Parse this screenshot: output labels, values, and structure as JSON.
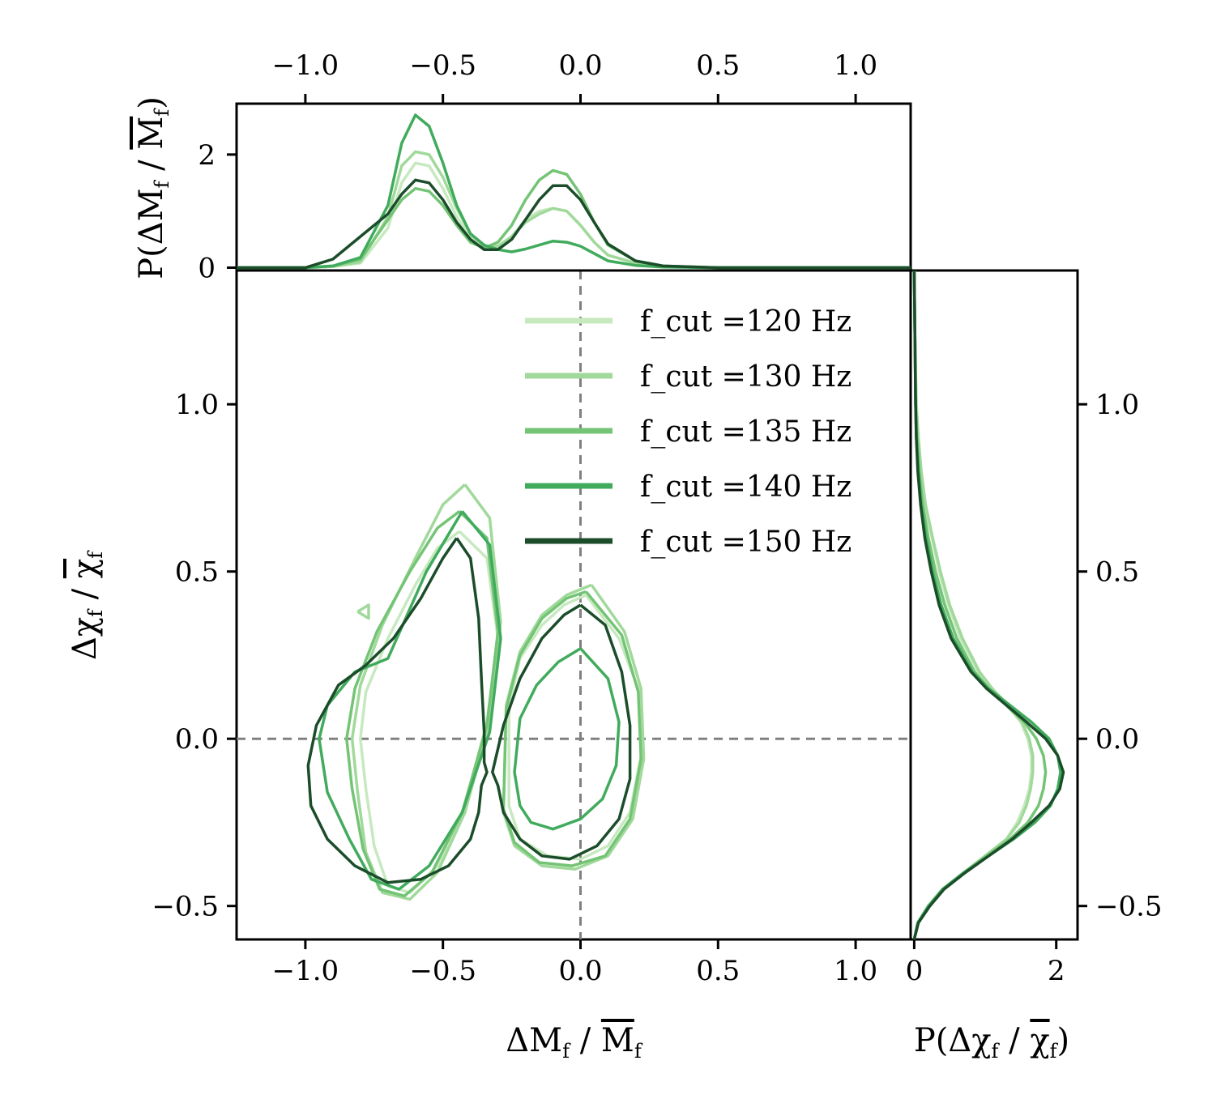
{
  "figure": {
    "x_label": "ΔM_f / M̄_f",
    "y_label": "Δχ_f / χ̄_f",
    "top_marginal_label": "P(ΔM_f / M̄_f)",
    "right_marginal_label": "P(Δχ_f / χ̄_f)"
  },
  "legend": {
    "placement": "upper center",
    "entries": [
      {
        "label": "f_cut =120 Hz",
        "color": "#c7e9c0"
      },
      {
        "label": "f_cut =130 Hz",
        "color": "#a1d99b"
      },
      {
        "label": "f_cut =135 Hz",
        "color": "#74c476"
      },
      {
        "label": "f_cut =140 Hz",
        "color": "#41ab5d"
      },
      {
        "label": "f_cut =150 Hz",
        "color": "#1b4d2a"
      }
    ]
  },
  "chart_data": [
    {
      "type": "line",
      "panel": "main-contours",
      "xlim": [
        -1.25,
        1.2
      ],
      "ylim": [
        -0.6,
        1.4
      ],
      "x_ticks": [
        "−1.0",
        "−0.5",
        "0.0",
        "0.5",
        "1.0"
      ],
      "y_ticks": [
        "−0.5",
        "0.0",
        "0.5",
        "1.0"
      ],
      "reference_lines": {
        "x": 0.0,
        "y": 0.0,
        "style": "dashed",
        "color": "#808080"
      },
      "series": [
        {
          "name": "f_cut =120 Hz",
          "color": "#c7e9c0",
          "contours": [
            {
              "x": [
                -0.44,
                -0.34,
                -0.3,
                -0.34,
                -0.42,
                -0.52,
                -0.62,
                -0.7,
                -0.75,
                -0.78,
                -0.8,
                -0.78,
                -0.7,
                -0.6,
                -0.52,
                -0.44
              ],
              "y": [
                0.62,
                0.54,
                0.3,
                0.05,
                -0.2,
                -0.38,
                -0.46,
                -0.44,
                -0.32,
                -0.15,
                0.0,
                0.14,
                0.3,
                0.46,
                0.57,
                0.62
              ]
            },
            {
              "x": [
                0.02,
                0.14,
                0.21,
                0.22,
                0.18,
                0.1,
                0.0,
                -0.12,
                -0.22,
                -0.26,
                -0.26,
                -0.22,
                -0.14,
                -0.06,
                0.02
              ],
              "y": [
                0.43,
                0.3,
                0.15,
                -0.05,
                -0.22,
                -0.32,
                -0.36,
                -0.35,
                -0.3,
                -0.2,
                0.1,
                0.24,
                0.34,
                0.4,
                0.43
              ]
            }
          ]
        },
        {
          "name": "f_cut =130 Hz",
          "color": "#a1d99b",
          "contours": [
            {
              "x": [
                -0.42,
                -0.33,
                -0.29,
                -0.33,
                -0.42,
                -0.52,
                -0.62,
                -0.72,
                -0.78,
                -0.81,
                -0.83,
                -0.8,
                -0.72,
                -0.6,
                -0.5,
                -0.42
              ],
              "y": [
                0.76,
                0.66,
                0.35,
                0.05,
                -0.22,
                -0.4,
                -0.48,
                -0.46,
                -0.34,
                -0.16,
                0.0,
                0.16,
                0.34,
                0.54,
                0.7,
                0.76
              ]
            },
            {
              "x": [
                0.04,
                0.16,
                0.22,
                0.23,
                0.19,
                0.1,
                -0.02,
                -0.14,
                -0.24,
                -0.28,
                -0.27,
                -0.22,
                -0.14,
                -0.05,
                0.04
              ],
              "y": [
                0.46,
                0.32,
                0.15,
                -0.06,
                -0.24,
                -0.35,
                -0.39,
                -0.38,
                -0.32,
                -0.22,
                0.1,
                0.26,
                0.37,
                0.43,
                0.46
              ]
            },
            {
              "x": [
                -0.81,
                -0.77,
                -0.77,
                -0.81
              ],
              "y": [
                0.38,
                0.4,
                0.36,
                0.38
              ]
            }
          ]
        },
        {
          "name": "f_cut =135 Hz",
          "color": "#74c476",
          "contours": [
            {
              "x": [
                -0.44,
                -0.34,
                -0.3,
                -0.34,
                -0.43,
                -0.54,
                -0.64,
                -0.73,
                -0.79,
                -0.83,
                -0.85,
                -0.82,
                -0.74,
                -0.62,
                -0.52,
                -0.44
              ],
              "y": [
                0.68,
                0.6,
                0.32,
                0.04,
                -0.22,
                -0.4,
                -0.47,
                -0.45,
                -0.33,
                -0.15,
                0.0,
                0.15,
                0.32,
                0.5,
                0.63,
                0.68
              ]
            },
            {
              "x": [
                0.02,
                0.15,
                0.21,
                0.22,
                0.18,
                0.09,
                -0.03,
                -0.15,
                -0.24,
                -0.28,
                -0.27,
                -0.22,
                -0.14,
                -0.05,
                0.02
              ],
              "y": [
                0.44,
                0.31,
                0.14,
                -0.06,
                -0.24,
                -0.35,
                -0.38,
                -0.37,
                -0.31,
                -0.21,
                0.09,
                0.25,
                0.36,
                0.42,
                0.44
              ]
            }
          ]
        },
        {
          "name": "f_cut =140 Hz",
          "color": "#41ab5d",
          "contours": [
            {
              "x": [
                -0.43,
                -0.33,
                -0.29,
                -0.33,
                -0.43,
                -0.55,
                -0.66,
                -0.76,
                -0.84,
                -0.92,
                -0.95,
                -0.92,
                -0.82,
                -0.7,
                -0.56,
                -0.43
              ],
              "y": [
                0.68,
                0.58,
                0.3,
                0.02,
                -0.22,
                -0.38,
                -0.45,
                -0.42,
                -0.3,
                -0.16,
                0.0,
                0.1,
                0.2,
                0.24,
                0.5,
                0.68
              ]
            },
            {
              "x": [
                0.0,
                0.1,
                0.14,
                0.13,
                0.08,
                0.0,
                -0.1,
                -0.18,
                -0.22,
                -0.24,
                -0.22,
                -0.16,
                -0.08,
                0.0
              ],
              "y": [
                0.27,
                0.18,
                0.05,
                -0.08,
                -0.18,
                -0.24,
                -0.27,
                -0.25,
                -0.2,
                -0.1,
                0.06,
                0.16,
                0.23,
                0.27
              ]
            }
          ]
        },
        {
          "name": "f_cut =150 Hz",
          "color": "#1b4d2a",
          "contours": [
            {
              "x": [
                -0.45,
                -0.4,
                -0.37,
                -0.36,
                -0.35,
                -0.35,
                -0.34,
                -0.36,
                -0.37,
                -0.4,
                -0.48,
                -0.58,
                -0.7,
                -0.82,
                -0.92,
                -0.98,
                -0.99,
                -0.96,
                -0.88,
                -0.78,
                -0.68,
                -0.58,
                -0.5,
                -0.45
              ],
              "y": [
                0.6,
                0.54,
                0.36,
                0.18,
                0.02,
                -0.07,
                -0.1,
                -0.14,
                -0.22,
                -0.3,
                -0.38,
                -0.42,
                -0.43,
                -0.38,
                -0.3,
                -0.2,
                -0.08,
                0.04,
                0.16,
                0.22,
                0.3,
                0.42,
                0.54,
                0.6
              ]
            },
            {
              "x": [
                0.0,
                0.09,
                0.15,
                0.18,
                0.18,
                0.14,
                0.06,
                -0.04,
                -0.14,
                -0.22,
                -0.28,
                -0.3,
                -0.32,
                -0.28,
                -0.22,
                -0.14,
                -0.06,
                0.0
              ],
              "y": [
                0.4,
                0.34,
                0.2,
                0.04,
                -0.12,
                -0.24,
                -0.32,
                -0.36,
                -0.35,
                -0.3,
                -0.22,
                -0.14,
                -0.1,
                0.04,
                0.18,
                0.3,
                0.37,
                0.4
              ]
            }
          ]
        }
      ]
    },
    {
      "type": "line",
      "panel": "top-marginal",
      "xlim": [
        -1.25,
        1.2
      ],
      "ylim": [
        -0.05,
        2.9
      ],
      "x_ticks": [
        "−1.0",
        "−0.5",
        "0.0",
        "0.5",
        "1.0"
      ],
      "y_ticks": [
        "0",
        "2"
      ],
      "x": [
        -1.25,
        -1.0,
        -0.9,
        -0.8,
        -0.7,
        -0.65,
        -0.6,
        -0.55,
        -0.5,
        -0.45,
        -0.4,
        -0.35,
        -0.3,
        -0.25,
        -0.2,
        -0.15,
        -0.1,
        -0.05,
        0.0,
        0.05,
        0.1,
        0.2,
        0.3,
        0.5,
        0.8,
        1.2
      ],
      "series": [
        {
          "name": "f_cut =120 Hz",
          "color": "#c7e9c0",
          "values": [
            0,
            0,
            0.02,
            0.08,
            0.7,
            1.5,
            1.85,
            1.8,
            1.4,
            0.9,
            0.55,
            0.38,
            0.38,
            0.55,
            0.85,
            1.0,
            1.05,
            1.0,
            0.75,
            0.45,
            0.22,
            0.08,
            0.02,
            0,
            0,
            0
          ]
        },
        {
          "name": "f_cut =130 Hz",
          "color": "#a1d99b",
          "values": [
            0,
            0,
            0.02,
            0.1,
            0.9,
            1.8,
            2.05,
            2.0,
            1.6,
            1.05,
            0.6,
            0.38,
            0.38,
            0.55,
            0.8,
            0.95,
            1.05,
            1.0,
            0.75,
            0.45,
            0.22,
            0.08,
            0.02,
            0,
            0,
            0
          ]
        },
        {
          "name": "f_cut =135 Hz",
          "color": "#74c476",
          "values": [
            0,
            0,
            0.03,
            0.15,
            0.85,
            1.2,
            1.4,
            1.35,
            1.1,
            0.75,
            0.45,
            0.35,
            0.45,
            0.75,
            1.2,
            1.55,
            1.72,
            1.65,
            1.3,
            0.8,
            0.4,
            0.12,
            0.03,
            0,
            0,
            0
          ]
        },
        {
          "name": "f_cut =140 Hz",
          "color": "#41ab5d",
          "values": [
            0,
            0,
            0.03,
            0.18,
            1.1,
            2.2,
            2.7,
            2.5,
            1.85,
            1.1,
            0.6,
            0.4,
            0.32,
            0.28,
            0.33,
            0.4,
            0.47,
            0.45,
            0.38,
            0.25,
            0.12,
            0.04,
            0.01,
            0,
            0,
            0
          ]
        },
        {
          "name": "f_cut =150 Hz",
          "color": "#1b4d2a",
          "values": [
            0,
            0,
            0.15,
            0.55,
            0.95,
            1.3,
            1.55,
            1.5,
            1.2,
            0.8,
            0.5,
            0.32,
            0.32,
            0.5,
            0.85,
            1.2,
            1.45,
            1.45,
            1.2,
            0.8,
            0.42,
            0.12,
            0.03,
            0,
            0,
            0
          ]
        }
      ]
    },
    {
      "type": "line",
      "panel": "right-marginal",
      "orientation": "horizontal",
      "xlim": [
        -0.05,
        2.3
      ],
      "ylim": [
        -0.6,
        1.4
      ],
      "x_ticks": [
        "0",
        "2"
      ],
      "y_ticks": [
        "−0.5",
        "0.0",
        "0.5",
        "1.0"
      ],
      "y": [
        -0.6,
        -0.55,
        -0.5,
        -0.45,
        -0.4,
        -0.35,
        -0.3,
        -0.25,
        -0.2,
        -0.15,
        -0.1,
        -0.05,
        0.0,
        0.05,
        0.1,
        0.15,
        0.2,
        0.3,
        0.4,
        0.5,
        0.6,
        0.7,
        0.8,
        0.9,
        1.0,
        1.2,
        1.4
      ],
      "series": [
        {
          "name": "f_cut =120 Hz",
          "color": "#c7e9c0",
          "values": [
            0.0,
            0.05,
            0.2,
            0.4,
            0.7,
            1.0,
            1.3,
            1.45,
            1.55,
            1.62,
            1.65,
            1.65,
            1.6,
            1.5,
            1.3,
            1.08,
            0.9,
            0.65,
            0.48,
            0.35,
            0.25,
            0.15,
            0.09,
            0.05,
            0.03,
            0.01,
            0.0
          ]
        },
        {
          "name": "f_cut =130 Hz",
          "color": "#a1d99b",
          "values": [
            0.0,
            0.05,
            0.2,
            0.4,
            0.7,
            1.0,
            1.3,
            1.48,
            1.58,
            1.64,
            1.67,
            1.67,
            1.62,
            1.52,
            1.32,
            1.1,
            0.92,
            0.68,
            0.5,
            0.37,
            0.26,
            0.16,
            0.1,
            0.06,
            0.03,
            0.01,
            0.0
          ]
        },
        {
          "name": "f_cut =135 Hz",
          "color": "#74c476",
          "values": [
            0.0,
            0.05,
            0.2,
            0.4,
            0.7,
            1.02,
            1.35,
            1.6,
            1.75,
            1.82,
            1.85,
            1.82,
            1.72,
            1.55,
            1.3,
            1.05,
            0.85,
            0.6,
            0.43,
            0.3,
            0.2,
            0.12,
            0.07,
            0.04,
            0.02,
            0.01,
            0.0
          ]
        },
        {
          "name": "f_cut =140 Hz",
          "color": "#41ab5d",
          "values": [
            0.0,
            0.05,
            0.2,
            0.4,
            0.7,
            1.05,
            1.4,
            1.7,
            1.92,
            2.02,
            2.06,
            2.02,
            1.9,
            1.65,
            1.35,
            1.05,
            0.82,
            0.55,
            0.38,
            0.26,
            0.17,
            0.1,
            0.06,
            0.03,
            0.02,
            0.01,
            0.0
          ]
        },
        {
          "name": "f_cut =150 Hz",
          "color": "#1b4d2a",
          "values": [
            0.0,
            0.06,
            0.22,
            0.42,
            0.72,
            1.05,
            1.38,
            1.65,
            1.9,
            2.05,
            2.1,
            2.02,
            1.85,
            1.58,
            1.3,
            1.02,
            0.8,
            0.52,
            0.35,
            0.24,
            0.15,
            0.09,
            0.05,
            0.03,
            0.02,
            0.01,
            0.0
          ]
        }
      ]
    }
  ]
}
